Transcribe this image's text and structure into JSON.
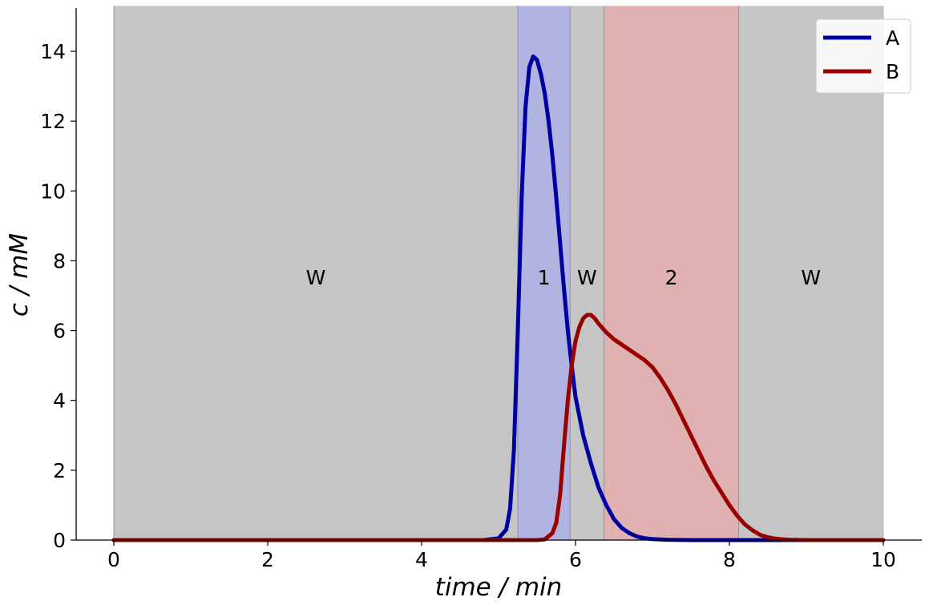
{
  "chart_data": {
    "type": "line",
    "xlabel": "time / min",
    "ylabel": "c / mM",
    "xlim": [
      -0.5,
      10.5
    ],
    "ylim": [
      0,
      15.3
    ],
    "xticks": [
      0,
      2,
      4,
      6,
      8,
      10
    ],
    "yticks": [
      0,
      2,
      4,
      6,
      8,
      10,
      12,
      14
    ],
    "grid": false,
    "legend_position": "top-right",
    "fractions": [
      {
        "start": 0.0,
        "end": 5.25,
        "label": "W",
        "color": "#c5c5c5"
      },
      {
        "start": 5.25,
        "end": 5.93,
        "label": "1",
        "color": "#b1b3e0"
      },
      {
        "start": 5.93,
        "end": 6.37,
        "label": "W",
        "color": "#c5c5c5"
      },
      {
        "start": 6.37,
        "end": 8.12,
        "label": "2",
        "color": "#e0b1b1"
      },
      {
        "start": 8.12,
        "end": 10.0,
        "label": "W",
        "color": "#c5c5c5"
      }
    ],
    "fraction_label_y": 7.5,
    "series": [
      {
        "name": "A",
        "color": "#0000a0",
        "x": [
          0,
          4.8,
          5.0,
          5.1,
          5.15,
          5.2,
          5.25,
          5.3,
          5.35,
          5.4,
          5.45,
          5.5,
          5.55,
          5.6,
          5.65,
          5.7,
          5.75,
          5.8,
          5.85,
          5.9,
          5.95,
          6.0,
          6.1,
          6.2,
          6.3,
          6.4,
          6.5,
          6.6,
          6.7,
          6.8,
          6.9,
          7.0,
          7.2,
          7.5,
          8.0,
          10.0
        ],
        "y": [
          0,
          0,
          0.05,
          0.3,
          0.9,
          2.6,
          6.0,
          9.8,
          12.4,
          13.55,
          13.85,
          13.75,
          13.35,
          12.8,
          12.0,
          11.0,
          9.8,
          8.5,
          7.2,
          6.0,
          5.0,
          4.1,
          3.0,
          2.2,
          1.5,
          1.0,
          0.6,
          0.35,
          0.2,
          0.1,
          0.05,
          0.03,
          0.01,
          0,
          0,
          0
        ]
      },
      {
        "name": "B",
        "color": "#990000",
        "x": [
          0,
          5.5,
          5.6,
          5.7,
          5.75,
          5.8,
          5.85,
          5.9,
          5.95,
          6.0,
          6.05,
          6.1,
          6.15,
          6.2,
          6.25,
          6.3,
          6.4,
          6.5,
          6.6,
          6.7,
          6.8,
          6.9,
          7.0,
          7.1,
          7.2,
          7.3,
          7.4,
          7.5,
          7.6,
          7.7,
          7.8,
          7.9,
          8.0,
          8.1,
          8.2,
          8.3,
          8.4,
          8.5,
          8.6,
          8.7,
          8.8,
          9.0,
          10.0
        ],
        "y": [
          0,
          0,
          0.02,
          0.2,
          0.5,
          1.3,
          2.7,
          4.0,
          5.0,
          5.7,
          6.1,
          6.35,
          6.45,
          6.45,
          6.35,
          6.2,
          5.95,
          5.75,
          5.6,
          5.45,
          5.3,
          5.15,
          4.95,
          4.65,
          4.3,
          3.9,
          3.45,
          3.0,
          2.55,
          2.1,
          1.7,
          1.35,
          1.0,
          0.7,
          0.45,
          0.28,
          0.15,
          0.08,
          0.04,
          0.02,
          0.01,
          0,
          0
        ]
      }
    ]
  }
}
